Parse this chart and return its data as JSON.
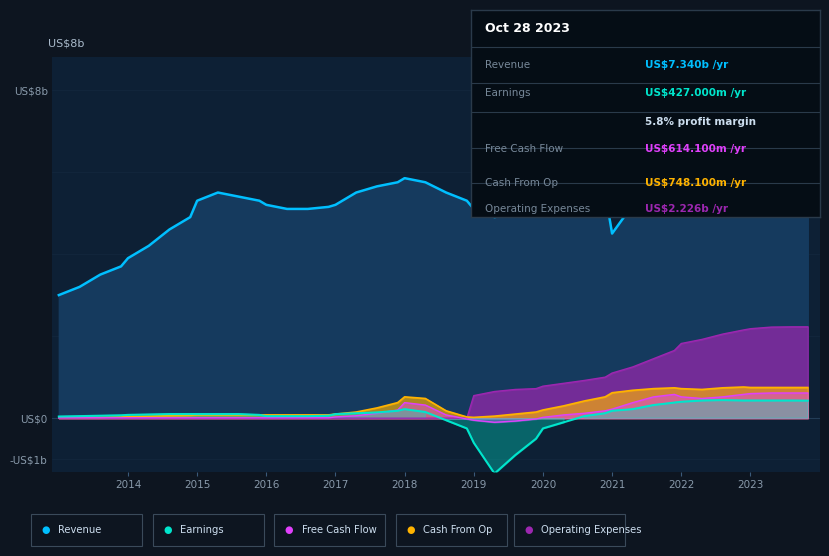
{
  "bg_color": "#0d1520",
  "plot_bg_color": "#0d2035",
  "grid_color": "#1e3a5f",
  "ylabel_text": "US$8b",
  "ylabel_zero": "US$0",
  "ylabel_neg": "-US$1b",
  "years": [
    2013.0,
    2013.3,
    2013.6,
    2013.9,
    2014.0,
    2014.3,
    2014.6,
    2014.9,
    2015.0,
    2015.3,
    2015.6,
    2015.9,
    2016.0,
    2016.3,
    2016.6,
    2016.9,
    2017.0,
    2017.3,
    2017.6,
    2017.9,
    2018.0,
    2018.3,
    2018.6,
    2018.9,
    2019.0,
    2019.3,
    2019.6,
    2019.9,
    2020.0,
    2020.3,
    2020.6,
    2020.9,
    2021.0,
    2021.3,
    2021.6,
    2021.9,
    2022.0,
    2022.3,
    2022.6,
    2022.9,
    2023.0,
    2023.3,
    2023.6,
    2023.83
  ],
  "revenue": [
    3.0,
    3.2,
    3.5,
    3.7,
    3.9,
    4.2,
    4.6,
    4.9,
    5.3,
    5.5,
    5.4,
    5.3,
    5.2,
    5.1,
    5.1,
    5.15,
    5.2,
    5.5,
    5.65,
    5.75,
    5.85,
    5.75,
    5.5,
    5.3,
    5.1,
    4.9,
    5.0,
    5.1,
    5.2,
    5.35,
    5.45,
    5.5,
    4.5,
    5.2,
    6.2,
    7.1,
    7.6,
    7.85,
    7.95,
    7.88,
    7.55,
    7.42,
    7.34,
    7.34
  ],
  "earnings": [
    0.04,
    0.05,
    0.06,
    0.07,
    0.08,
    0.09,
    0.1,
    0.1,
    0.1,
    0.1,
    0.1,
    0.08,
    0.05,
    0.05,
    0.05,
    0.06,
    0.1,
    0.12,
    0.14,
    0.18,
    0.22,
    0.15,
    -0.05,
    -0.25,
    -0.6,
    -1.35,
    -0.9,
    -0.5,
    -0.25,
    -0.1,
    0.05,
    0.12,
    0.18,
    0.22,
    0.32,
    0.38,
    0.4,
    0.43,
    0.44,
    0.43,
    0.43,
    0.43,
    0.43,
    0.427
  ],
  "free_cash_flow": [
    0.01,
    0.01,
    0.01,
    0.01,
    0.01,
    0.01,
    0.01,
    0.01,
    0.01,
    0.01,
    0.01,
    0.01,
    0.01,
    0.01,
    0.01,
    0.01,
    0.03,
    0.06,
    0.12,
    0.2,
    0.38,
    0.32,
    0.08,
    -0.02,
    -0.05,
    -0.1,
    -0.07,
    -0.02,
    0.02,
    0.08,
    0.12,
    0.18,
    0.22,
    0.38,
    0.52,
    0.58,
    0.52,
    0.48,
    0.52,
    0.58,
    0.6,
    0.614,
    0.614,
    0.614
  ],
  "cash_from_op": [
    0.02,
    0.02,
    0.02,
    0.03,
    0.04,
    0.05,
    0.06,
    0.07,
    0.08,
    0.08,
    0.08,
    0.08,
    0.08,
    0.08,
    0.08,
    0.08,
    0.1,
    0.15,
    0.25,
    0.38,
    0.52,
    0.48,
    0.18,
    0.03,
    0.02,
    0.05,
    0.1,
    0.15,
    0.2,
    0.3,
    0.42,
    0.52,
    0.62,
    0.68,
    0.72,
    0.74,
    0.72,
    0.7,
    0.74,
    0.76,
    0.748,
    0.748,
    0.748,
    0.748
  ],
  "op_expenses": [
    0.0,
    0.0,
    0.0,
    0.0,
    0.0,
    0.0,
    0.0,
    0.0,
    0.0,
    0.0,
    0.0,
    0.0,
    0.0,
    0.0,
    0.0,
    0.0,
    0.0,
    0.0,
    0.0,
    0.0,
    0.0,
    0.0,
    0.0,
    0.0,
    0.55,
    0.65,
    0.7,
    0.72,
    0.78,
    0.85,
    0.92,
    1.0,
    1.1,
    1.25,
    1.45,
    1.65,
    1.82,
    1.92,
    2.05,
    2.15,
    2.18,
    2.22,
    2.226,
    2.226
  ],
  "revenue_color": "#00bfff",
  "revenue_fill": "#153a5e",
  "earnings_color": "#00e5cc",
  "fcf_color": "#e040fb",
  "cashop_color": "#ffb300",
  "opex_color": "#9c27b0",
  "annotation_bg": "#050d15",
  "annotation_border": "#2a3a4a",
  "annotation_title": "Oct 28 2023",
  "ann_revenue_label": "Revenue",
  "ann_revenue_val": "US$7.340b /yr",
  "ann_revenue_color": "#00bfff",
  "ann_earnings_label": "Earnings",
  "ann_earnings_val": "US$427.000m /yr",
  "ann_earnings_color": "#00e5cc",
  "ann_margin": "5.8% profit margin",
  "ann_fcf_label": "Free Cash Flow",
  "ann_fcf_val": "US$614.100m /yr",
  "ann_fcf_color": "#e040fb",
  "ann_cashop_label": "Cash From Op",
  "ann_cashop_val": "US$748.100m /yr",
  "ann_cashop_color": "#ffb300",
  "ann_opex_label": "Operating Expenses",
  "ann_opex_val": "US$2.226b /yr",
  "ann_opex_color": "#9c27b0",
  "xmin": 2012.9,
  "xmax": 2024.0,
  "ymin": -1.3,
  "ymax": 8.8,
  "yticks_vals": [
    -1.0,
    0.0,
    8.0
  ],
  "ytick_labels": [
    "-US$1b",
    "US$0",
    "US$8b"
  ],
  "xticks": [
    2014,
    2015,
    2016,
    2017,
    2018,
    2019,
    2020,
    2021,
    2022,
    2023
  ],
  "legend_items": [
    "Revenue",
    "Earnings",
    "Free Cash Flow",
    "Cash From Op",
    "Operating Expenses"
  ],
  "legend_colors": [
    "#00bfff",
    "#00e5cc",
    "#e040fb",
    "#ffb300",
    "#9c27b0"
  ]
}
